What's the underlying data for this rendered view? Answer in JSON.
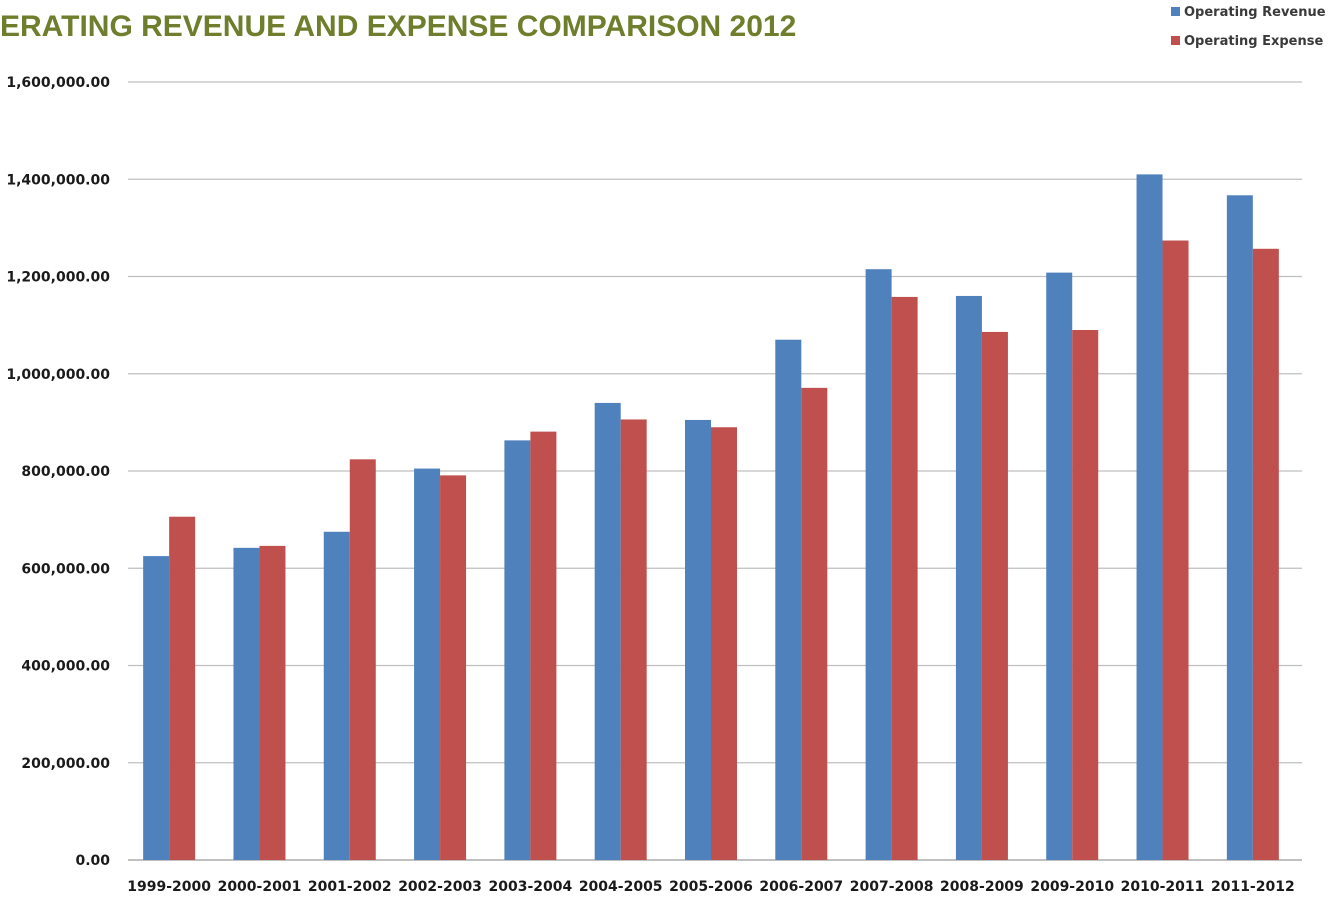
{
  "chart_data": {
    "type": "bar",
    "title": "ERATING REVENUE AND EXPENSE COMPARISON 2012",
    "xlabel": "",
    "ylabel": "",
    "ylim": [
      0,
      1600000
    ],
    "y_ticks": [
      0,
      200000,
      400000,
      600000,
      800000,
      1000000,
      1200000,
      1400000,
      1600000
    ],
    "y_tick_labels": [
      "0.00",
      "200,000.00",
      "400,000.00",
      "600,000.00",
      "800,000.00",
      "1,000,000.00",
      "1,200,000.00",
      "1,400,000.00",
      "1,600,000.00"
    ],
    "grid": true,
    "legend_position": "top-right",
    "categories": [
      "1999-2000",
      "2000-2001",
      "2001-2002",
      "2002-2003",
      "2003-2004",
      "2004-2005",
      "2005-2006",
      "2006-2007",
      "2007-2008",
      "2008-2009",
      "2009-2010",
      "2010-2011",
      "2011-2012"
    ],
    "series": [
      {
        "name": "Operating Revenue",
        "color": "#4f81bd",
        "values": [
          625000,
          642000,
          675000,
          805000,
          863000,
          940000,
          905000,
          1070000,
          1215000,
          1160000,
          1208000,
          1410000,
          1367000
        ]
      },
      {
        "name": "Operating Expense",
        "color": "#c0504d",
        "values": [
          706000,
          646000,
          824000,
          791000,
          881000,
          906000,
          890000,
          971000,
          1158000,
          1086000,
          1090000,
          1274000,
          1257000
        ]
      }
    ]
  }
}
